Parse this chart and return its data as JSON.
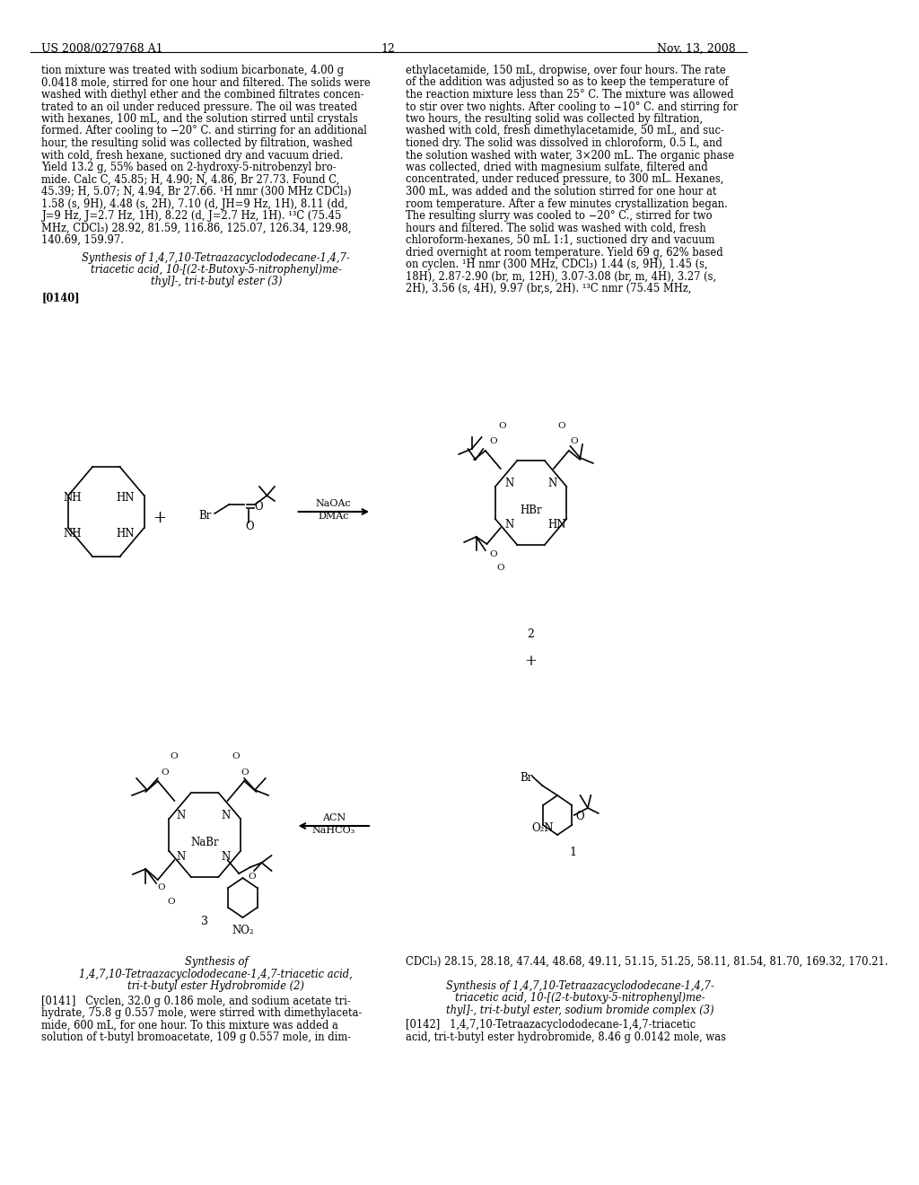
{
  "page_number": "12",
  "patent_number": "US 2008/0279768 A1",
  "patent_date": "Nov. 13, 2008",
  "background_color": "#ffffff",
  "text_color": "#000000",
  "left_column_text": [
    "tion mixture was treated with sodium bicarbonate, 4.00 g",
    "0.0418 mole, stirred for one hour and filtered. The solids were",
    "washed with diethyl ether and the combined filtrates concen-",
    "trated to an oil under reduced pressure. The oil was treated",
    "with hexanes, 100 mL, and the solution stirred until crystals",
    "formed. After cooling to −20° C. and stirring for an additional",
    "hour, the resulting solid was collected by filtration, washed",
    "with cold, fresh hexane, suctioned dry and vacuum dried.",
    "Yield 13.2 g, 55% based on 2-hydroxy-5-nitrobenzyl bro-",
    "mide. Calc C, 45.85; H, 4.90; N, 4.86, Br 27.73. Found C,",
    "45.39; H, 5.07; N, 4.94, Br 27.66. ¹H nmr (300 MHz CDCl₃)",
    "1.58 (s, 9H), 4.48 (s, 2H), 7.10 (d, JH=9 Hz, 1H), 8.11 (dd,",
    "J=9 Hz, J=2.7 Hz, 1H), 8.22 (d, J=2.7 Hz, 1H). ¹³C (75.45",
    "MHz, CDCl₃) 28.92, 81.59, 116.86, 125.07, 126.34, 129.98,",
    "140.69, 159.97."
  ],
  "synthesis_title_left": [
    "Synthesis of 1,4,7,10-Tetraazacyclododecane-1,4,7-",
    "triacetic acid, 10-[(2-t-Butoxy-5-nitrophenyl)me-",
    "thyl]-, tri-t-butyl ester (3)"
  ],
  "paragraph_140": "[0140]",
  "right_column_text": [
    "ethylacetamide, 150 mL, dropwise, over four hours. The rate",
    "of the addition was adjusted so as to keep the temperature of",
    "the reaction mixture less than 25° C. The mixture was allowed",
    "to stir over two nights. After cooling to −10° C. and stirring for",
    "two hours, the resulting solid was collected by filtration,",
    "washed with cold, fresh dimethylacetamide, 50 mL, and suc-",
    "tioned dry. The solid was dissolved in chloroform, 0.5 L, and",
    "the solution washed with water, 3×200 mL. The organic phase",
    "was collected, dried with magnesium sulfate, filtered and",
    "concentrated, under reduced pressure, to 300 mL. Hexanes,",
    "300 mL, was added and the solution stirred for one hour at",
    "room temperature. After a few minutes crystallization began.",
    "The resulting slurry was cooled to −20° C., stirred for two",
    "hours and filtered. The solid was washed with cold, fresh",
    "chloroform-hexanes, 50 mL 1:1, suctioned dry and vacuum",
    "dried overnight at room temperature. Yield 69 g, 62% based",
    "on cyclen. ¹H nmr (300 MHz, CDCl₃) 1.44 (s, 9H), 1.45 (s,",
    "18H), 2.87-2.90 (br, m, 12H), 3.07-3.08 (br, m, 4H), 3.27 (s,",
    "2H), 3.56 (s, 4H), 9.97 (br,s, 2H). ¹³C nmr (75.45 MHz,"
  ],
  "bottom_left_text": [
    "Synthesis of",
    "1,4,7,10-Tetraazacyclododecane-1,4,7-triacetic acid,",
    "tri-t-butyl ester Hydrobromide (2)"
  ],
  "paragraph_141_text": "[0141]   Cyclen, 32.0 g 0.186 mole, and sodium acetate tri-hydrate, 75.8 g 0.557 mole, were stirred with dimethylaceta-mide, 600 mL, for one hour. To this mixture was added a solution of t-butyl bromoacetate, 109 g 0.557 mole, in dim-",
  "bottom_right_text1": "CDCl₃) 28.15, 28.18, 47.44, 48.68, 49.11, 51.15, 51.25, 58.11, 81.54, 81.70, 169.32, 170.21.",
  "bottom_right_text2": [
    "Synthesis of 1,4,7,10-Tetraazacyclododecane-1,4,7-",
    "triacetic acid, 10-[(2-t-butoxy-5-nitrophenyl)me-",
    "thyl]-, tri-t-butyl ester, sodium bromide complex (3)"
  ],
  "paragraph_142_text": "[0142]   1,4,7,10-Tetraazacyclododecane-1,4,7-triacetic acid, tri-t-butyl ester hydrobromide, 8.46 g 0.0142 mole, was"
}
